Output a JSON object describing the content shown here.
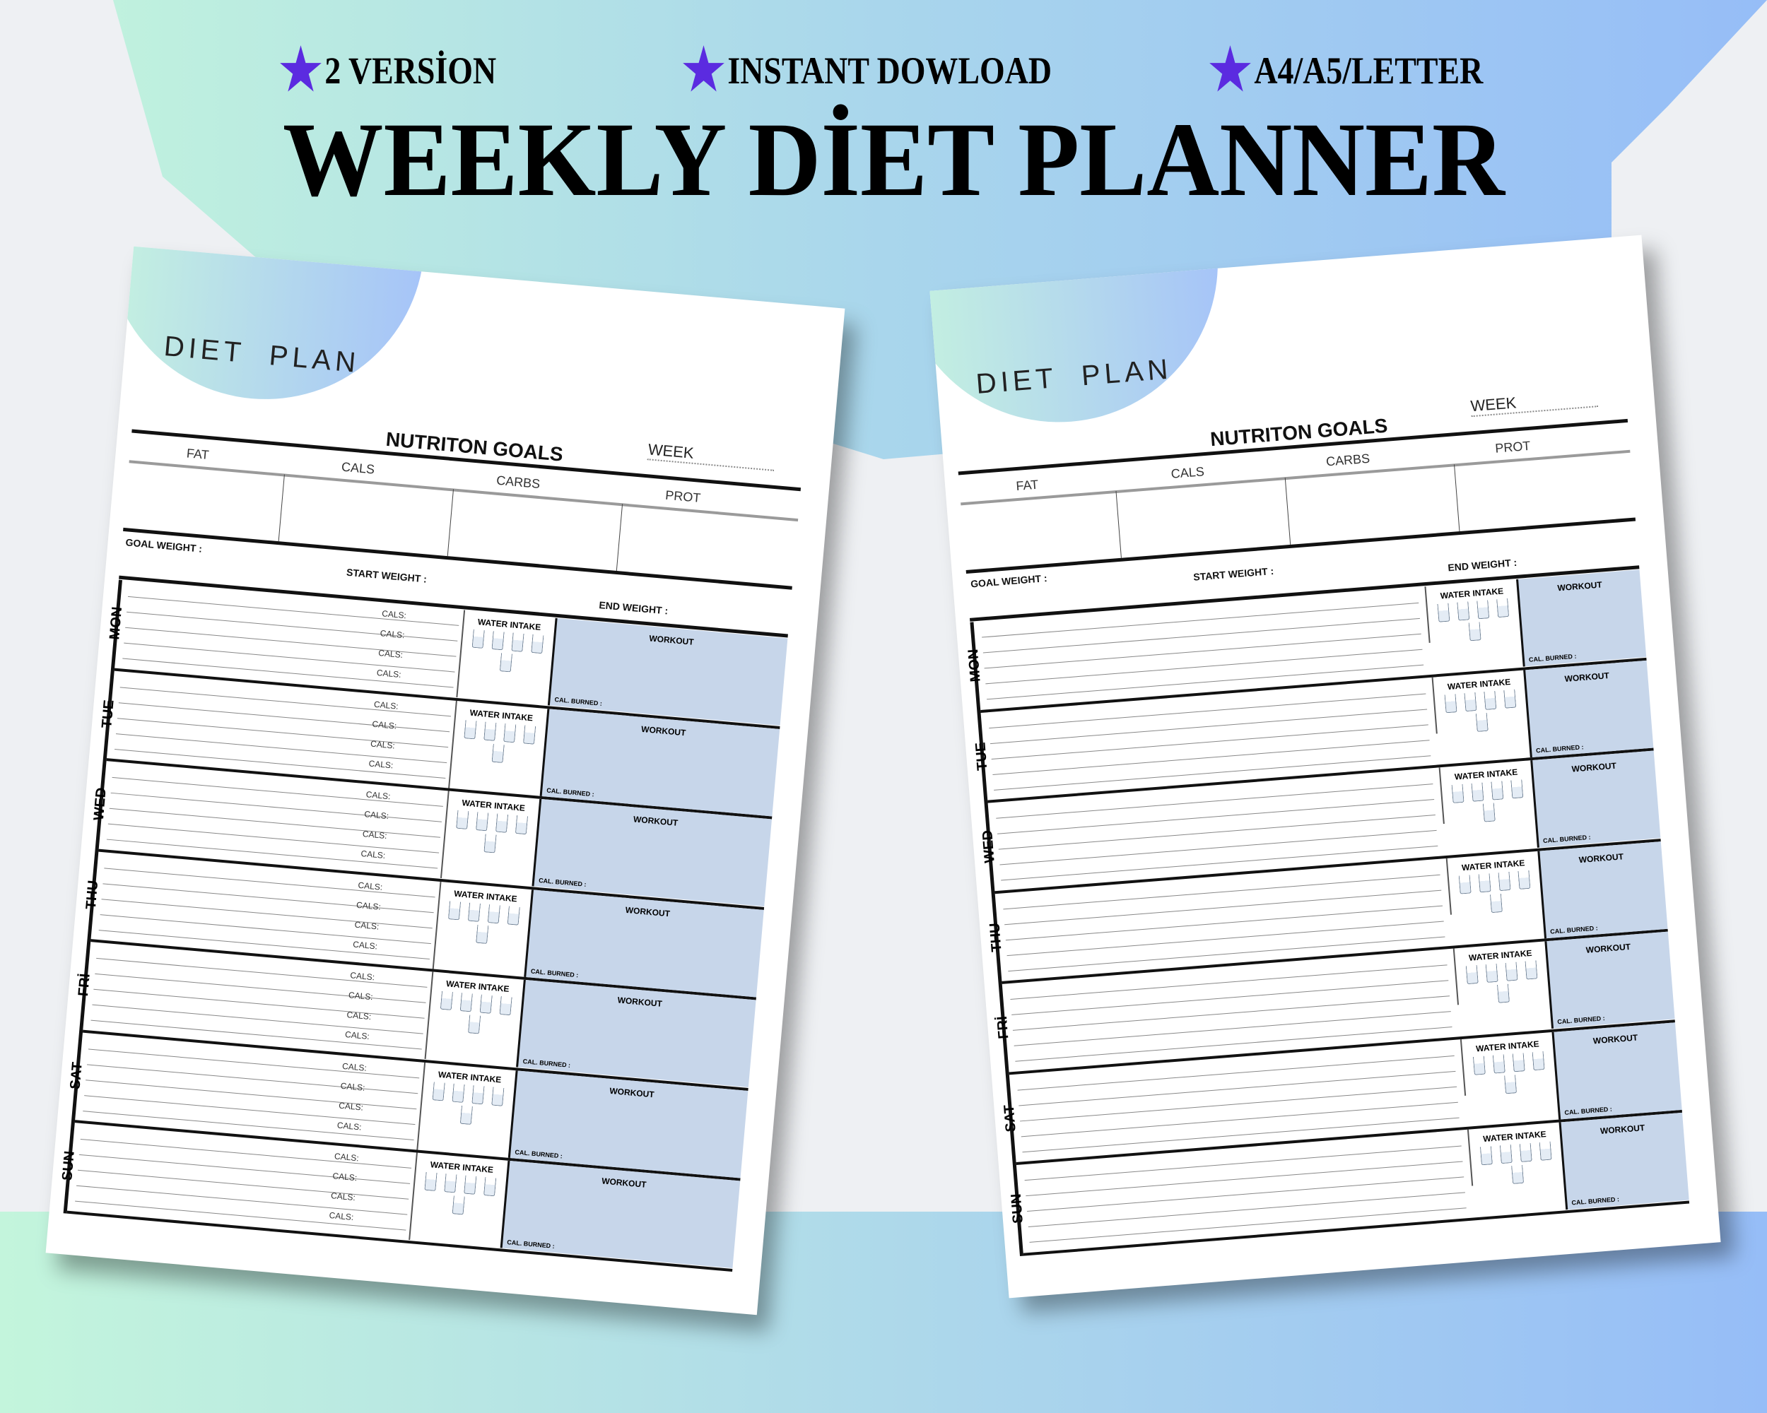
{
  "banner": {
    "features": [
      "2 VERSİON",
      "INSTANT DOWLOAD",
      "A4/A5/LETTER"
    ],
    "title": "WEEKLY DİET PLANNER",
    "star_color": "#5b2be0"
  },
  "page": {
    "diet_plan": "DIET PLAN",
    "week": "WEEK",
    "nutrition_goals": "NUTRITON GOALS",
    "macros": [
      "FAT",
      "CALS",
      "CARBS",
      "PROT"
    ],
    "goal_weight": "GOAL WEIGHT :",
    "start_weight": "START WEIGHT :",
    "end_weight": "END WEIGHT :",
    "cals": "CALS:",
    "water_intake": "WATER INTAKE",
    "workout": "WORKOUT",
    "cal_burned": "CAL. BURNED :",
    "days": [
      "MON",
      "TUE",
      "WED",
      "THU",
      "FRİ",
      "SAT",
      "SUN"
    ],
    "workout_color": "#c7d6ea"
  }
}
